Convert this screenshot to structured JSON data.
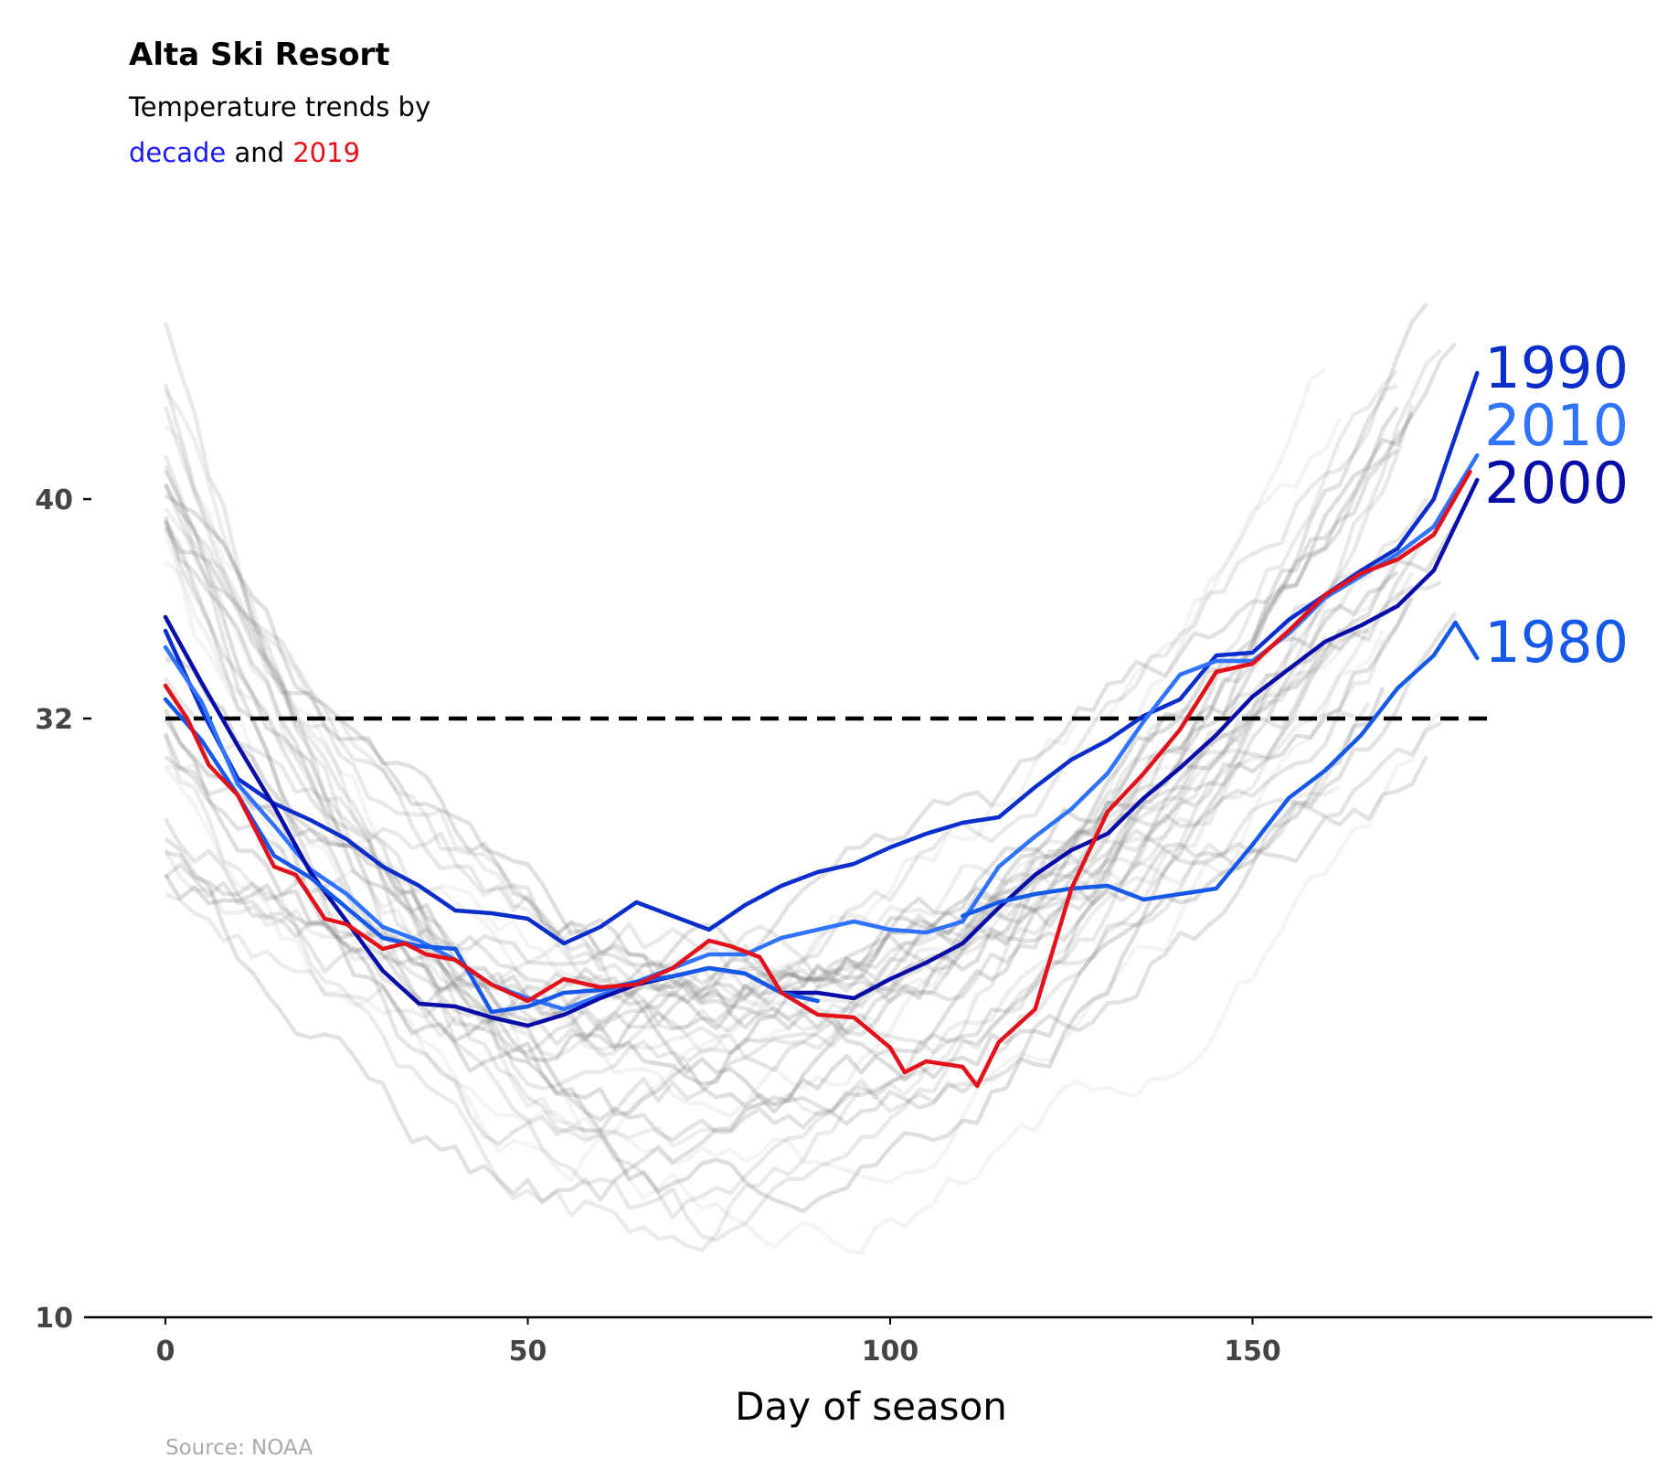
{
  "title": "Alta Ski Resort",
  "subtitle_line1": "Temperature trends by",
  "subtitle_decade_word": "decade",
  "subtitle_and_word": "and",
  "subtitle_year_word": "2019",
  "source": "Source: NOAA",
  "colors": {
    "decade_word": "#1a1aff",
    "year_word": "#e3111a",
    "2019": "#e3111a",
    "1980": "#1659e8",
    "1990": "#0a2ecc",
    "2000": "#080da8",
    "2010": "#2f73ff",
    "freezing_line": "#000000",
    "background_lines": "#777777"
  },
  "chart_data": {
    "type": "line",
    "xlabel": "Day of season",
    "ylabel": "",
    "xlim": [
      -11,
      205
    ],
    "ylim": [
      10,
      50
    ],
    "xticks": [
      0,
      50,
      100,
      150
    ],
    "xtick_labels": [
      "0",
      "50",
      "100",
      "150"
    ],
    "yticks": [
      10,
      32,
      40
    ],
    "ytick_labels": [
      "10",
      "32",
      "40"
    ],
    "grid": false,
    "legend": "none",
    "reference_line": {
      "y": 32,
      "style": "dashed"
    },
    "background_series_note": "many individual seasons in translucent grey",
    "series": [
      {
        "name": "1990",
        "color_key": "1990",
        "x": [
          0,
          5,
          10,
          15,
          20,
          25,
          30,
          35,
          40,
          45,
          50,
          55,
          60,
          65,
          70,
          75,
          80,
          85,
          90,
          95,
          100,
          105,
          110,
          115,
          120,
          125,
          130,
          135,
          140,
          145,
          150,
          155,
          160,
          165,
          170,
          175,
          181
        ],
        "values": [
          35.2,
          32.3,
          29.8,
          28.9,
          28.3,
          27.6,
          26.6,
          25.9,
          25.0,
          24.9,
          24.7,
          23.8,
          24.4,
          25.3,
          24.8,
          24.3,
          25.2,
          25.9,
          26.4,
          26.7,
          27.3,
          27.8,
          28.2,
          28.4,
          29.5,
          30.5,
          31.2,
          32.1,
          32.7,
          34.3,
          34.4,
          35.6,
          36.5,
          37.4,
          38.2,
          40.0,
          44.6
        ]
      },
      {
        "name": "2010",
        "color_key": "2010",
        "x": [
          0,
          5,
          10,
          15,
          20,
          25,
          30,
          35,
          40,
          45,
          50,
          55,
          60,
          65,
          70,
          75,
          80,
          85,
          90,
          95,
          100,
          105,
          110,
          115,
          120,
          125,
          130,
          135,
          140,
          145,
          150,
          155,
          160,
          165,
          170,
          175,
          181
        ],
        "values": [
          34.6,
          32.6,
          29.6,
          28.1,
          26.5,
          25.6,
          24.4,
          23.9,
          23.2,
          22.3,
          21.8,
          21.4,
          21.9,
          22.4,
          22.9,
          23.4,
          23.4,
          24.0,
          24.3,
          24.6,
          24.3,
          24.2,
          24.6,
          26.6,
          27.7,
          28.7,
          30.0,
          31.9,
          33.6,
          34.1,
          34.1,
          35.1,
          36.4,
          37.2,
          38.0,
          39.0,
          41.6
        ]
      },
      {
        "name": "2000",
        "color_key": "2000",
        "x": [
          0,
          5,
          10,
          15,
          20,
          25,
          30,
          35,
          40,
          45,
          50,
          55,
          60,
          65,
          70,
          75,
          80,
          85,
          90,
          95,
          100,
          105,
          110,
          115,
          120,
          125,
          130,
          135,
          140,
          145,
          150,
          155,
          160,
          165,
          170,
          175,
          181
        ],
        "values": [
          35.7,
          33.3,
          31.0,
          28.8,
          26.4,
          24.6,
          22.8,
          21.6,
          21.5,
          21.1,
          20.8,
          21.2,
          21.8,
          22.3,
          22.6,
          22.9,
          22.7,
          22.0,
          22.0,
          21.8,
          22.5,
          23.1,
          23.8,
          25.1,
          26.3,
          27.2,
          27.8,
          29.1,
          30.2,
          31.4,
          32.8,
          33.8,
          34.8,
          35.4,
          36.1,
          37.4,
          40.7
        ]
      },
      {
        "name": "1980",
        "color_key": "1980",
        "x": [
          0,
          5,
          10,
          15,
          20,
          25,
          30,
          35,
          40,
          45,
          50,
          55,
          60,
          65,
          70,
          75,
          80,
          85,
          90,
          95,
          100,
          105,
          110,
          115,
          120,
          125,
          130,
          135,
          140,
          145,
          150,
          155,
          160,
          165,
          170,
          175,
          178,
          181
        ],
        "values": [
          32.7,
          31.2,
          29.2,
          27.0,
          26.2,
          25.1,
          24.0,
          23.7,
          23.6,
          21.3,
          21.5,
          22.0,
          22.1,
          22.4,
          22.6,
          22.9,
          22.7,
          22.0,
          21.7,
          null,
          null,
          null,
          24.8,
          25.3,
          25.6,
          25.8,
          25.9,
          25.4,
          25.6,
          25.8,
          27.4,
          29.1,
          30.1,
          31.4,
          33.1,
          34.3,
          35.5,
          34.2
        ]
      },
      {
        "name": "2019",
        "color_key": "2019",
        "x": [
          0,
          3,
          6,
          10,
          15,
          18,
          22,
          25,
          30,
          33,
          36,
          40,
          45,
          50,
          55,
          60,
          65,
          70,
          75,
          78,
          82,
          85,
          90,
          95,
          100,
          102,
          105,
          110,
          112,
          115,
          120,
          125,
          130,
          135,
          140,
          145,
          150,
          155,
          160,
          165,
          170,
          175,
          180
        ],
        "values": [
          33.2,
          32.0,
          30.3,
          29.2,
          26.6,
          26.3,
          24.7,
          24.5,
          23.6,
          23.8,
          23.4,
          23.2,
          22.3,
          21.7,
          22.5,
          22.2,
          22.3,
          22.9,
          23.9,
          23.7,
          23.3,
          22.0,
          21.2,
          21.1,
          20.0,
          19.1,
          19.5,
          19.3,
          18.6,
          20.2,
          21.4,
          25.8,
          28.6,
          30.0,
          31.6,
          33.7,
          34.0,
          35.2,
          36.5,
          37.3,
          37.8,
          38.7,
          41.0
        ]
      }
    ],
    "end_labels": [
      {
        "text": "1990",
        "color_key": "1990",
        "y": 44.8
      },
      {
        "text": "2010",
        "color_key": "2010",
        "y": 42.7
      },
      {
        "text": "2000",
        "color_key": "2000",
        "y": 40.6
      },
      {
        "text": "1980",
        "color_key": "1980",
        "y": 34.8
      }
    ]
  }
}
